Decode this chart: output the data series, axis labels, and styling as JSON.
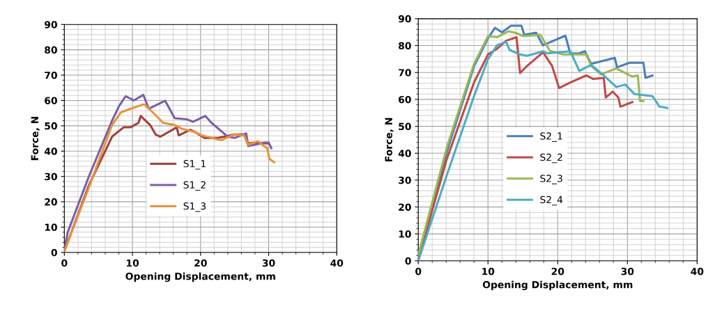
{
  "chart_data": [
    {
      "type": "line",
      "xlabel": "Opening Displacement, mm",
      "ylabel": "Force, N",
      "xlim": [
        0,
        40
      ],
      "ylim": [
        0,
        90
      ],
      "xticks": [
        0,
        10,
        20,
        30,
        40
      ],
      "yticks": [
        0,
        10,
        20,
        30,
        40,
        50,
        60,
        70,
        80,
        90
      ],
      "grid": true,
      "legend": "bottom",
      "line_style": "solid",
      "marker": "none",
      "series": [
        {
          "name": "S1_1",
          "color": "#a0413c",
          "x": [
            0,
            3.6,
            7,
            8.7,
            9.7,
            10.9,
            11.2,
            12.6,
            13.4,
            14.1,
            16.5,
            16.8,
            18.5,
            19.2,
            20.6,
            22.6,
            25,
            26.4,
            26.9,
            28,
            30
          ],
          "values": [
            0.5,
            26.5,
            45.7,
            49.4,
            49.4,
            51.2,
            53.9,
            50.3,
            46.6,
            45.7,
            49.4,
            46.2,
            48.4,
            47.5,
            45.2,
            45.2,
            46.6,
            46.6,
            43,
            43.4,
            43
          ]
        },
        {
          "name": "S1_2",
          "color": "#7b5ea7",
          "x": [
            0,
            0.5,
            3.6,
            7,
            8,
            9,
            10.2,
            11.6,
            12.4,
            14.8,
            16.2,
            17.9,
            18.9,
            20.7,
            21.6,
            24,
            25,
            26.7,
            27,
            29.4,
            30,
            30.4
          ],
          "values": [
            1,
            8,
            30,
            52,
            57.6,
            61.7,
            60,
            62.2,
            56.7,
            59.9,
            53,
            52.6,
            51.6,
            53.9,
            51.2,
            45.7,
            45.2,
            47,
            42,
            43.4,
            43.4,
            41.1
          ]
        },
        {
          "name": "S1_3",
          "color": "#e7923a",
          "x": [
            0,
            3.6,
            7,
            8.3,
            9.7,
            11.7,
            12.8,
            14.5,
            16.2,
            17.2,
            19.2,
            20.2,
            23,
            25,
            26.4,
            27,
            28.4,
            29.8,
            30.1,
            30.8
          ],
          "values": [
            0.5,
            25.6,
            50.3,
            55.3,
            56.7,
            58.5,
            55.8,
            51.2,
            50.3,
            48.9,
            47.5,
            46.2,
            44.3,
            46.6,
            46.2,
            42.5,
            43.9,
            41.1,
            37,
            35.6
          ]
        }
      ]
    },
    {
      "type": "line",
      "xlabel": "Opening Displacement, mm",
      "ylabel": "Force, N",
      "xlim": [
        0,
        40
      ],
      "ylim": [
        0,
        90
      ],
      "xticks": [
        0,
        10,
        20,
        30,
        40
      ],
      "yticks": [
        0,
        10,
        20,
        30,
        40,
        50,
        60,
        70,
        80,
        90
      ],
      "grid": true,
      "legend": "center",
      "line_style": "solid",
      "marker": "none",
      "series": [
        {
          "name": "S2_1",
          "color": "#4a7ebb",
          "x": [
            0,
            4.1,
            8,
            10,
            11,
            12,
            13.3,
            14.8,
            15.2,
            16.9,
            17.9,
            21.1,
            21.8,
            23.1,
            23.9,
            24.8,
            28.2,
            28.5,
            30.3,
            32.3,
            32.6,
            33.6
          ],
          "values": [
            0.9,
            40.5,
            72.3,
            82.7,
            86.6,
            84.9,
            87.4,
            87.4,
            84,
            84.8,
            80.1,
            83.7,
            77.1,
            77.1,
            77.9,
            73.2,
            75.4,
            71.9,
            73.6,
            73.6,
            68,
            68.9
          ]
        },
        {
          "name": "S2_2",
          "color": "#be4b48",
          "x": [
            0,
            4.1,
            8,
            10,
            11.3,
            12.6,
            14.1,
            14.6,
            15.6,
            17.9,
            19.2,
            20.2,
            21.8,
            24.1,
            25.1,
            26.6,
            26.9,
            27.9,
            28.7,
            29,
            30.7
          ],
          "values": [
            0.4,
            37.9,
            66.3,
            76.7,
            78.8,
            81.8,
            83.1,
            69.8,
            72.4,
            77.5,
            72.4,
            64.2,
            66.3,
            68.9,
            67.6,
            68,
            60.7,
            62.9,
            60.7,
            57.3,
            59
          ]
        },
        {
          "name": "S2_3",
          "color": "#98b954",
          "x": [
            0,
            4.1,
            8,
            10,
            11.3,
            12.9,
            13.9,
            15.1,
            17.5,
            18.9,
            20.8,
            24.1,
            24.8,
            26.2,
            28.4,
            30.7,
            31.5,
            31.8,
            32.3
          ],
          "values": [
            2.2,
            42.2,
            73.2,
            83.5,
            83.1,
            85.3,
            84.8,
            83.5,
            84,
            78,
            76.7,
            76.7,
            72.4,
            69.3,
            71.5,
            68.5,
            68.9,
            59.4,
            59.4
          ]
        },
        {
          "name": "S2_4",
          "color": "#4bacc6",
          "x": [
            0,
            4.1,
            8,
            10,
            11.3,
            12.6,
            13.1,
            14.6,
            15.6,
            17.9,
            18.5,
            21.8,
            23.1,
            24.8,
            26.6,
            28.4,
            29.7,
            31,
            33.6,
            34.6,
            35.7
          ],
          "values": [
            0,
            31.9,
            61.2,
            74.9,
            80.1,
            81.4,
            78.4,
            76.7,
            76.2,
            77.9,
            77.1,
            77.9,
            70.6,
            72.8,
            68.9,
            64.6,
            65.5,
            62,
            61.2,
            57.3,
            56.8
          ]
        }
      ]
    }
  ]
}
